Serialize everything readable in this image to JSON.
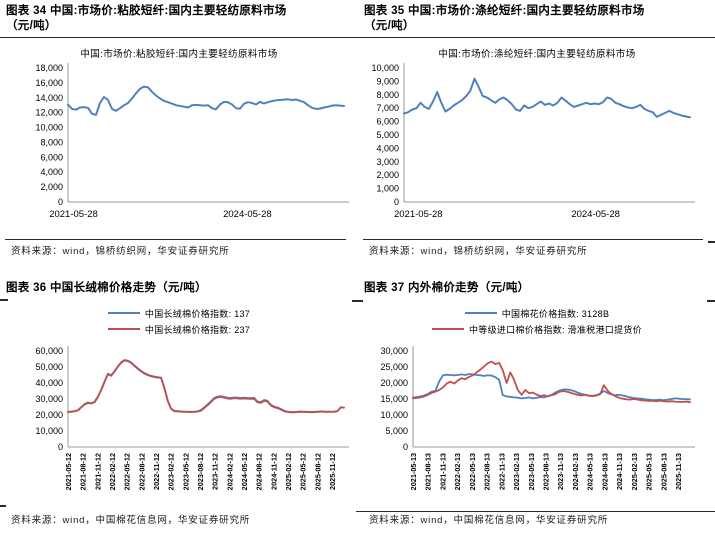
{
  "colors": {
    "line_blue": "#4F81BD",
    "line_red": "#C0504D",
    "axis_gray": "#9a9a9a",
    "rule_dark": "#2b2b2b"
  },
  "figures": [
    {
      "id": "fig34",
      "title_line1": "图表 34 中国:市场价:粘胶短纤:国内主要轻纺原料市场",
      "title_line2": "（元/吨）",
      "inner_title": "中国:市场价:粘胶短纤:国内主要轻纺原料市场",
      "source": "资料来源：wind，锦桥纺织网，华安证券研究所"
    },
    {
      "id": "fig35",
      "title_line1": "图表 35 中国:市场价:涤纶短纤:国内主要轻纺原料市场",
      "title_line2": "（元/吨）",
      "inner_title": "中国:市场价:涤纶短纤:国内主要轻纺原料市场",
      "source": "资料来源：wind，锦桥纺织网，华安证券研究所"
    },
    {
      "id": "fig36",
      "title_line1": "图表 36 中国长绒棉价格走势（元/吨）",
      "title_line2": "",
      "source": "资料来源：wind，中国棉花信息网，华安证券研究所"
    },
    {
      "id": "fig37",
      "title_line1": "图表 37 内外棉价走势（元/吨）",
      "title_line2": "",
      "source": "资料来源：wind，中国棉花信息网，华安证券研究所"
    }
  ],
  "chart_data": [
    {
      "id": "fig34",
      "type": "line",
      "title": "中国:市场价:粘胶短纤:国内主要轻纺原料市场",
      "ylabel": "元/吨",
      "ylim": [
        0,
        18000
      ],
      "ystep": 2000,
      "x_mode": "sparse",
      "x_ticks": [
        {
          "label": "2021-05-28",
          "f": 0.02
        },
        {
          "label": "2024-05-28",
          "f": 0.65
        }
      ],
      "series": [
        {
          "name": "中国:市场价:粘胶短纤:国内主要轻纺原料市场",
          "color": "#4F81BD",
          "values": [
            13100,
            12500,
            12400,
            12700,
            12750,
            12650,
            11850,
            11700,
            13300,
            14100,
            13700,
            12500,
            12250,
            12600,
            13000,
            13300,
            13900,
            14600,
            15200,
            15500,
            15400,
            14800,
            14300,
            13900,
            13600,
            13400,
            13200,
            13000,
            12900,
            12800,
            12700,
            13000,
            13050,
            13000,
            12950,
            13000,
            12600,
            12450,
            13100,
            13450,
            13400,
            13100,
            12600,
            12550,
            13200,
            13400,
            13300,
            13100,
            13450,
            13250,
            13400,
            13550,
            13650,
            13700,
            13750,
            13800,
            13700,
            13750,
            13600,
            13400,
            13000,
            12650,
            12500,
            12550,
            12700,
            12800,
            12950,
            13000,
            12950,
            12900
          ]
        }
      ]
    },
    {
      "id": "fig35",
      "type": "line",
      "title": "中国:市场价:涤纶短纤:国内主要轻纺原料市场",
      "ylabel": "元/吨",
      "ylim": [
        0,
        10000
      ],
      "ystep": 1000,
      "x_mode": "sparse",
      "x_ticks": [
        {
          "label": "2021-05-28",
          "f": 0.05
        },
        {
          "label": "2024-05-28",
          "f": 0.67
        }
      ],
      "series": [
        {
          "name": "中国:市场价:涤纶短纤:国内主要轻纺原料市场",
          "color": "#4F81BD",
          "values": [
            6600,
            6700,
            6900,
            7000,
            7400,
            7100,
            6950,
            7500,
            8200,
            7400,
            6750,
            6950,
            7200,
            7400,
            7600,
            7900,
            8300,
            9200,
            8600,
            7900,
            7800,
            7600,
            7400,
            7650,
            7800,
            7600,
            7300,
            6900,
            6800,
            7200,
            7000,
            7100,
            7300,
            7500,
            7250,
            7350,
            7200,
            7400,
            7800,
            7550,
            7300,
            7100,
            7200,
            7300,
            7400,
            7300,
            7350,
            7300,
            7450,
            7800,
            7700,
            7400,
            7300,
            7150,
            7050,
            7000,
            7100,
            7250,
            6950,
            6800,
            6700,
            6350,
            6500,
            6650,
            6800,
            6650,
            6550,
            6450,
            6380,
            6320
          ]
        }
      ]
    },
    {
      "id": "fig36",
      "type": "line",
      "title": "中国长绒棉价格走势",
      "ylabel": "元/吨",
      "ylim": [
        0,
        60000
      ],
      "ystep": 10000,
      "x_mode": "rotated",
      "x_ticks": [
        "2021-05-12",
        "2021-08-12",
        "2021-11-12",
        "2022-02-12",
        "2022-05-12",
        "2022-08-12",
        "2022-11-12",
        "2023-02-12",
        "2023-05-12",
        "2023-08-12",
        "2023-11-12",
        "2024-02-12",
        "2024-05-12",
        "2024-08-12",
        "2024-11-12",
        "2025-02-12",
        "2025-05-12",
        "2025-08-12",
        "2025-11-12"
      ],
      "series": [
        {
          "name": "中国长绒棉价格指数: 137",
          "color": "#4F81BD",
          "values": [
            22000,
            22200,
            22500,
            23000,
            25000,
            26800,
            27800,
            27400,
            28300,
            31500,
            36000,
            41000,
            45800,
            44800,
            47500,
            50500,
            53000,
            54400,
            54000,
            52800,
            51000,
            49200,
            47500,
            46200,
            45200,
            44500,
            44000,
            43700,
            43400,
            37000,
            29000,
            24000,
            22600,
            22400,
            22250,
            22150,
            22050,
            22000,
            22100,
            22300,
            23200,
            24800,
            26600,
            28600,
            30600,
            31500,
            31800,
            31300,
            30800,
            30600,
            31000,
            30800,
            30700,
            30800,
            30700,
            30600,
            30700,
            28400,
            28100,
            29400,
            28900,
            26400,
            25300,
            24700,
            23800,
            22700,
            22100,
            21900,
            21900,
            22000,
            22200,
            22100,
            22000,
            21950,
            22000,
            22100,
            22300,
            22200,
            22100,
            22150,
            22200,
            22400,
            24800,
            24700
          ]
        },
        {
          "name": "中国长绒棉价格指数: 237",
          "color": "#C0504D",
          "values": [
            21800,
            22000,
            22300,
            22800,
            24800,
            26500,
            27500,
            27100,
            28000,
            31200,
            35700,
            40700,
            45500,
            44500,
            47200,
            50200,
            52700,
            54100,
            53700,
            52500,
            50700,
            48900,
            47200,
            45900,
            44900,
            44200,
            43700,
            43400,
            43100,
            36700,
            28700,
            23800,
            22400,
            22200,
            22050,
            21950,
            21850,
            21800,
            21900,
            22100,
            22700,
            24300,
            26100,
            28100,
            30100,
            31000,
            31300,
            30800,
            30300,
            30100,
            30500,
            30300,
            30200,
            30300,
            30200,
            30100,
            30200,
            27900,
            27600,
            28900,
            28400,
            26000,
            24900,
            24300,
            23400,
            22400,
            21900,
            21700,
            21700,
            21800,
            22000,
            21900,
            21800,
            21750,
            21800,
            21900,
            22100,
            22000,
            21900,
            21950,
            22000,
            22300,
            24700,
            24600
          ]
        }
      ]
    },
    {
      "id": "fig37",
      "type": "line",
      "title": "内外棉价走势",
      "ylabel": "元/吨",
      "ylim": [
        0,
        30000
      ],
      "ystep": 5000,
      "x_mode": "rotated",
      "x_ticks": [
        "2021-05-13",
        "2021-08-13",
        "2021-11-13",
        "2022-02-13",
        "2022-05-13",
        "2022-08-13",
        "2022-11-13",
        "2023-02-13",
        "2023-05-13",
        "2023-08-13",
        "2023-11-13",
        "2024-02-13",
        "2024-05-13",
        "2024-08-13",
        "2024-11-13",
        "2025-02-13",
        "2025-05-13",
        "2025-08-13",
        "2025-11-13"
      ],
      "series": [
        {
          "name": "中国棉花价格指数: 3128B",
          "color": "#4F81BD",
          "values": [
            15500,
            15600,
            15800,
            16100,
            16600,
            17300,
            17600,
            20500,
            22400,
            22600,
            22500,
            22400,
            22500,
            22700,
            22500,
            22800,
            22700,
            22500,
            22400,
            22200,
            22400,
            22300,
            21800,
            21000,
            16200,
            15800,
            15700,
            15500,
            15400,
            15200,
            15300,
            15500,
            15200,
            15400,
            15600,
            15500,
            15900,
            16300,
            17000,
            17600,
            17900,
            18000,
            17800,
            17500,
            17000,
            16600,
            16300,
            16100,
            16000,
            16200,
            16700,
            17500,
            16900,
            16400,
            16200,
            16300,
            16100,
            15800,
            15500,
            15300,
            15200,
            15100,
            14900,
            14800,
            14700,
            14700,
            14800,
            14600,
            14800,
            15000,
            15200,
            15100,
            15000,
            14950,
            14900
          ]
        },
        {
          "name": "中等级进口棉价格指数: 滑准税港口提货价",
          "color": "#C0504D",
          "values": [
            15200,
            15300,
            15500,
            15800,
            16300,
            16900,
            17300,
            17800,
            18600,
            19800,
            20400,
            19800,
            20800,
            21500,
            21200,
            21900,
            22400,
            23300,
            24200,
            25200,
            26200,
            26700,
            25900,
            26300,
            24000,
            20000,
            23300,
            21000,
            17800,
            16300,
            17800,
            16800,
            17000,
            16400,
            15900,
            16200,
            15800,
            16200,
            16500,
            17200,
            17500,
            17300,
            17000,
            16600,
            16300,
            16100,
            16300,
            16000,
            15900,
            16100,
            16500,
            19300,
            17600,
            16600,
            15900,
            15400,
            15100,
            14900,
            14800,
            15000,
            14800,
            14600,
            14500,
            14400,
            14400,
            14300,
            14500,
            14300,
            14200,
            14300,
            14200,
            14100,
            14100,
            14200,
            14000
          ]
        }
      ]
    }
  ]
}
